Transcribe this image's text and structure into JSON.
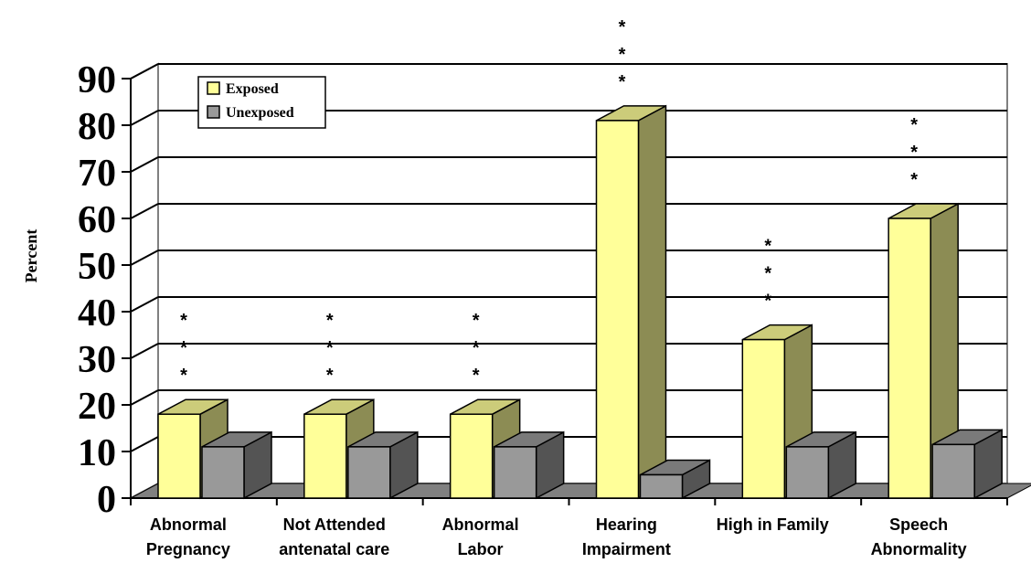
{
  "chart_data": {
    "type": "bar",
    "title": "",
    "xlabel": "",
    "ylabel": "Percent",
    "ylim": [
      0,
      90
    ],
    "yticks": [
      0,
      10,
      20,
      30,
      40,
      50,
      60,
      70,
      80,
      90
    ],
    "grid": true,
    "legend_position": "top-left",
    "categories": [
      [
        "Abnormal",
        "Pregnancy"
      ],
      [
        "Not Attended",
        "antenatal care"
      ],
      [
        "Abnormal",
        "Labor"
      ],
      [
        "Hearing",
        "Impairment"
      ],
      [
        "High in Family"
      ],
      [
        "Speech",
        "Abnormality"
      ]
    ],
    "series": [
      {
        "name": "Exposed",
        "color": "#ffff99",
        "values": [
          18,
          18,
          18,
          81,
          34,
          60
        ]
      },
      {
        "name": "Unexposed",
        "color": "#999999",
        "values": [
          11,
          11,
          11,
          5,
          11,
          11.5
        ]
      }
    ],
    "annotations": [
      "*\n*\n*",
      "*\n*\n*",
      "*\n*\n*",
      "*\n*\n*",
      "*\n*\n*",
      "*\n*\n*"
    ]
  }
}
